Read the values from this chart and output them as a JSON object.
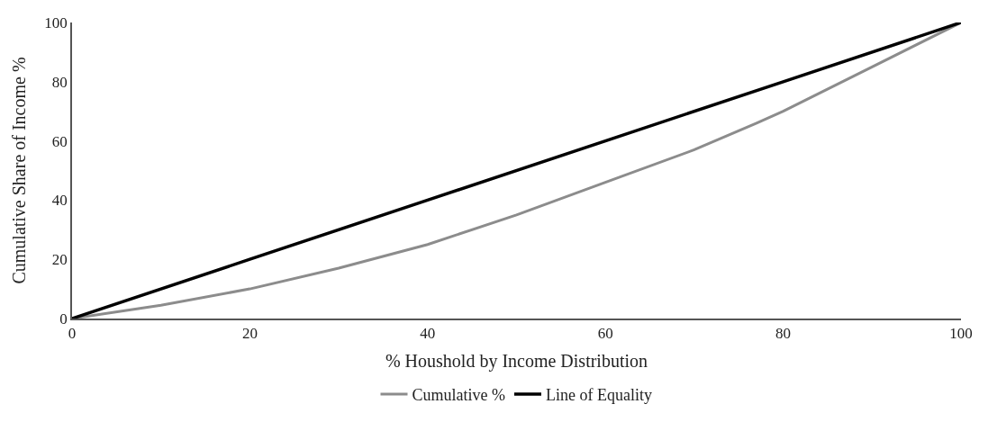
{
  "chart_data": {
    "type": "line",
    "xlabel": "% Houshold by Income Distribution",
    "ylabel": "Cumulative Share of Income %",
    "series": [
      {
        "name": "Cumulative %",
        "color": "#8c8c8c",
        "x": [
          0,
          10,
          20,
          30,
          40,
          50,
          60,
          70,
          77,
          80,
          90,
          100
        ],
        "values": [
          0,
          4.5,
          10,
          17,
          25,
          35,
          46,
          57,
          66,
          70,
          85,
          100
        ]
      },
      {
        "name": "Line of Equality",
        "color": "#000000",
        "x": [
          0,
          20,
          40,
          60,
          80,
          100
        ],
        "values": [
          0,
          20,
          40,
          60,
          80,
          100
        ]
      }
    ],
    "xlim": [
      0,
      100
    ],
    "xticks": [
      0,
      20,
      40,
      60,
      80,
      100
    ],
    "ylim": [
      0,
      100
    ],
    "yticks": [
      0,
      20,
      40,
      60,
      80,
      100
    ],
    "legend": "bottom",
    "marker": "none",
    "line_style": "solid"
  }
}
